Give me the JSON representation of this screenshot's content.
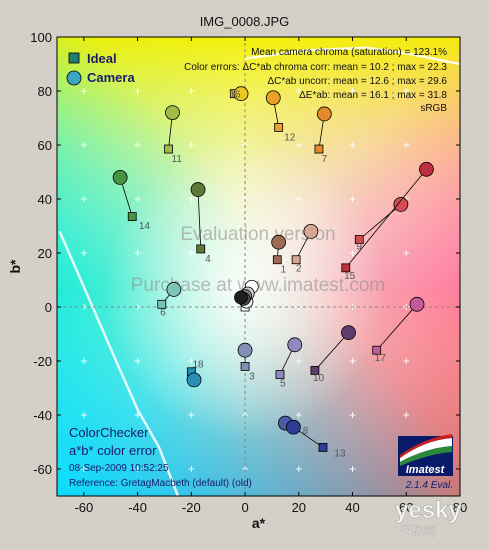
{
  "title": "IMG_0008.JPG",
  "chart_data": {
    "type": "scatter",
    "title": "IMG_0008.JPG",
    "xlabel": "a*",
    "ylabel": "b*",
    "xlim": [
      -70,
      80
    ],
    "ylim": [
      -70,
      100
    ],
    "xticks": [
      -60,
      -40,
      -20,
      0,
      20,
      40,
      60,
      80
    ],
    "yticks": [
      -60,
      -40,
      -20,
      0,
      20,
      40,
      60,
      80,
      100
    ],
    "grid": false,
    "legend": {
      "position": "top-left",
      "entries": [
        "Ideal",
        "Camera"
      ]
    },
    "annotations": [
      "Mean camera chroma (saturation) = 123.1%",
      "Color errors: ΔC*ab chroma corr:  mean = 10.2 ;  max = 22.3",
      "ΔC*ab uncorr:  mean = 12.6 ;  max = 29.6",
      "ΔE*ab:  mean = 16.1 ;  max = 31.8",
      "sRGB"
    ],
    "points": [
      {
        "id": "1",
        "ideal": [
          12.0,
          17.5
        ],
        "camera": [
          12.5,
          24.0
        ],
        "color": "#9e6a52"
      },
      {
        "id": "2",
        "ideal": [
          19.0,
          17.5
        ],
        "camera": [
          24.5,
          28.0
        ],
        "color": "#d8a592"
      },
      {
        "id": "3",
        "ideal": [
          0.0,
          -22.0
        ],
        "camera": [
          0.0,
          -16.0
        ],
        "color": "#8290b8"
      },
      {
        "id": "4",
        "ideal": [
          -16.5,
          21.5
        ],
        "camera": [
          -17.5,
          43.5
        ],
        "color": "#5e7a36"
      },
      {
        "id": "5",
        "ideal": [
          13.0,
          -25.0
        ],
        "camera": [
          18.5,
          -14.0
        ],
        "color": "#9288c0"
      },
      {
        "id": "6",
        "ideal": [
          -31.0,
          1.0
        ],
        "camera": [
          -26.5,
          6.5
        ],
        "color": "#7cc4b8"
      },
      {
        "id": "7",
        "ideal": [
          27.5,
          58.5
        ],
        "camera": [
          29.5,
          71.5
        ],
        "color": "#e48a2c"
      },
      {
        "id": "8",
        "ideal": [
          17.0,
          -44.0
        ],
        "camera": [
          15.0,
          -43.0
        ],
        "color": "#4a5aa8"
      },
      {
        "id": "9",
        "ideal": [
          42.5,
          25.0
        ],
        "camera": [
          58.0,
          38.0
        ],
        "color": "#d24c50"
      },
      {
        "id": "10",
        "ideal": [
          26.0,
          -23.5
        ],
        "camera": [
          38.5,
          -9.5
        ],
        "color": "#5e3c6e"
      },
      {
        "id": "11",
        "ideal": [
          -28.5,
          58.5
        ],
        "camera": [
          -27.0,
          72.0
        ],
        "color": "#a0bc46"
      },
      {
        "id": "12",
        "ideal": [
          12.5,
          66.5
        ],
        "camera": [
          10.5,
          77.5
        ],
        "color": "#e8a028"
      },
      {
        "id": "13",
        "ideal": [
          29.0,
          -52.0
        ],
        "camera": [
          18.0,
          -44.5
        ],
        "color": "#2e3c96"
      },
      {
        "id": "14",
        "ideal": [
          -42.0,
          33.5
        ],
        "camera": [
          -46.5,
          48.0
        ],
        "color": "#469440"
      },
      {
        "id": "15",
        "ideal": [
          37.5,
          14.5
        ],
        "camera": [
          67.5,
          51.0
        ],
        "color": "#bc3040"
      },
      {
        "id": "16",
        "ideal": [
          -4.0,
          79.0
        ],
        "camera": [
          -1.5,
          79.0
        ],
        "color": "#e8c81e"
      },
      {
        "id": "17",
        "ideal": [
          49.0,
          -16.0
        ],
        "camera": [
          64.0,
          1.0
        ],
        "color": "#c45a98"
      },
      {
        "id": "18",
        "ideal": [
          -20.0,
          -24.0
        ],
        "camera": [
          -19.0,
          -27.0
        ],
        "color": "#2a90b4"
      }
    ],
    "neutral_points": [
      {
        "ideal": [
          0.0,
          0.0
        ],
        "camera": [
          0.5,
          2.0
        ],
        "color": "#f4f4f4"
      },
      {
        "ideal": [
          0.0,
          0.0
        ],
        "camera": [
          2.5,
          7.5
        ],
        "color": "#ffffff"
      },
      {
        "ideal": [
          0.0,
          0.0
        ],
        "camera": [
          1.0,
          5.0
        ],
        "color": "#c8c8c8"
      },
      {
        "ideal": [
          0.0,
          0.0
        ],
        "camera": [
          0.0,
          4.0
        ],
        "color": "#8c8c8c"
      },
      {
        "ideal": [
          0.0,
          0.0
        ],
        "camera": [
          -0.5,
          3.0
        ],
        "color": "#505050"
      },
      {
        "ideal": [
          0.0,
          0.0
        ],
        "camera": [
          -1.5,
          3.5
        ],
        "color": "#1e1e1e"
      }
    ]
  },
  "legend": {
    "ideal_label": "Ideal",
    "camera_label": "Camera"
  },
  "watermark": {
    "line1": "Evaluation version",
    "line2": "Purchase at www.imatest.com"
  },
  "bottom_left": {
    "line1": "ColorChecker",
    "line2": "a*b* color error",
    "line3": "08-Sep-2009 10:52:25",
    "line4": "Reference: GretagMacbeth (default) (old)"
  },
  "logo": {
    "name": "Imatest",
    "version": "2.1.4  Eval."
  },
  "site_watermark": {
    "line1": "yesky",
    "line2": "天极网"
  }
}
